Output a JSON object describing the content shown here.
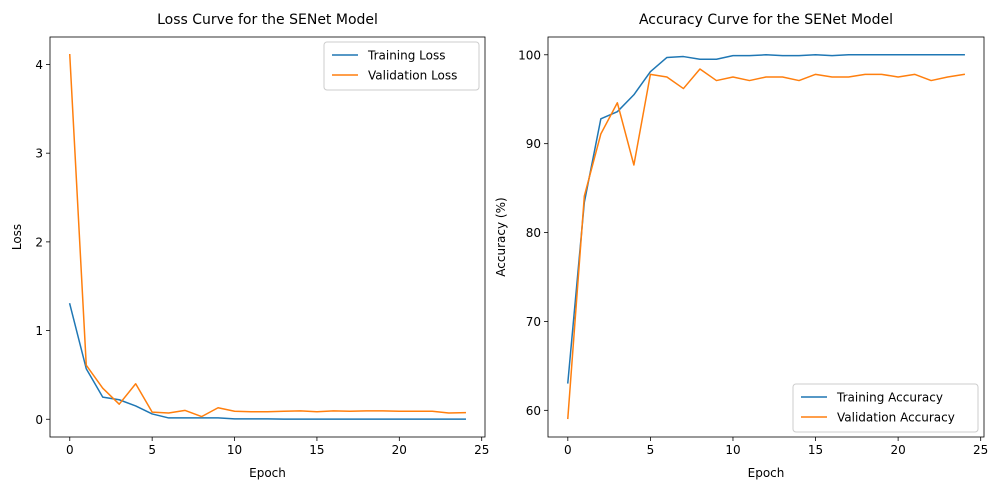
{
  "chart_data": [
    {
      "type": "line",
      "title": "Loss Curve for the SENet Model",
      "xlabel": "Epoch",
      "ylabel": "Loss",
      "xlim": [
        -1.2,
        25.2
      ],
      "ylim": [
        -0.2,
        4.31
      ],
      "xticks": [
        0,
        5,
        10,
        15,
        20,
        25
      ],
      "xtick_labels": [
        "0",
        "5",
        "10",
        "15",
        "20",
        "25"
      ],
      "yticks": [
        0,
        1,
        2,
        3,
        4
      ],
      "ytick_labels": [
        "0",
        "1",
        "2",
        "3",
        "4"
      ],
      "legend_position": "upper right",
      "x": [
        0,
        1,
        2,
        3,
        4,
        5,
        6,
        7,
        8,
        9,
        10,
        11,
        12,
        13,
        14,
        15,
        16,
        17,
        18,
        19,
        20,
        21,
        22,
        23,
        24
      ],
      "series": [
        {
          "name": "Training Loss",
          "color": "#1f77b4",
          "values": [
            1.3,
            0.57,
            0.25,
            0.22,
            0.15,
            0.06,
            0.015,
            0.015,
            0.015,
            0.015,
            0.005,
            0.005,
            0.005,
            0.002,
            0.002,
            0.002,
            0.002,
            0.002,
            0.001,
            0.001,
            0.001,
            0.001,
            0.001,
            0.001,
            0.001
          ]
        },
        {
          "name": "Validation Loss",
          "color": "#ff7f0e",
          "values": [
            4.11,
            0.61,
            0.35,
            0.17,
            0.4,
            0.08,
            0.07,
            0.1,
            0.03,
            0.13,
            0.09,
            0.085,
            0.085,
            0.09,
            0.095,
            0.085,
            0.095,
            0.09,
            0.095,
            0.095,
            0.09,
            0.09,
            0.09,
            0.07,
            0.075
          ]
        }
      ]
    },
    {
      "type": "line",
      "title": "Accuracy Curve for the SENet Model",
      "xlabel": "Epoch",
      "ylabel": "Accuracy (%)",
      "xlim": [
        -1.2,
        25.2
      ],
      "ylim": [
        57.0,
        102.0
      ],
      "xticks": [
        0,
        5,
        10,
        15,
        20,
        25
      ],
      "xtick_labels": [
        "0",
        "5",
        "10",
        "15",
        "20",
        "25"
      ],
      "yticks": [
        60,
        70,
        80,
        90,
        100
      ],
      "ytick_labels": [
        "60",
        "70",
        "80",
        "90",
        "100"
      ],
      "legend_position": "lower right",
      "x": [
        0,
        1,
        2,
        3,
        4,
        5,
        6,
        7,
        8,
        9,
        10,
        11,
        12,
        13,
        14,
        15,
        16,
        17,
        18,
        19,
        20,
        21,
        22,
        23,
        24
      ],
      "series": [
        {
          "name": "Training Accuracy",
          "color": "#1f77b4",
          "values": [
            63.1,
            83.4,
            92.8,
            93.6,
            95.5,
            98.1,
            99.7,
            99.8,
            99.5,
            99.5,
            99.9,
            99.9,
            100.0,
            99.9,
            99.9,
            100.0,
            99.9,
            100.0,
            100.0,
            100.0,
            100.0,
            100.0,
            100.0,
            100.0,
            100.0
          ]
        },
        {
          "name": "Validation Accuracy",
          "color": "#ff7f0e",
          "values": [
            59.1,
            84.1,
            91.1,
            94.6,
            87.6,
            97.8,
            97.5,
            96.2,
            98.4,
            97.1,
            97.5,
            97.1,
            97.5,
            97.5,
            97.1,
            97.8,
            97.5,
            97.5,
            97.8,
            97.8,
            97.5,
            97.8,
            97.1,
            97.5,
            97.8
          ]
        }
      ]
    }
  ]
}
